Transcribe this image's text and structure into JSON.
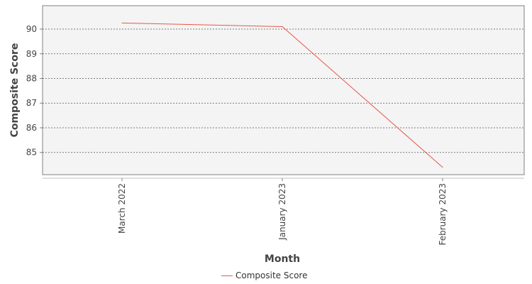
{
  "chart_data": {
    "type": "line",
    "categories": [
      "March 2022",
      "January 2023",
      "February 2023"
    ],
    "series": [
      {
        "name": "Composite Score",
        "values": [
          90.25,
          90.1,
          84.4
        ],
        "color": "#e8564a"
      }
    ],
    "xlabel": "Month",
    "ylabel": "Composite Score",
    "yticks": [
      85,
      86,
      87,
      88,
      89,
      90
    ],
    "ylim": [
      84.1,
      90.95
    ],
    "grid": true,
    "legend": "bottom-center"
  }
}
